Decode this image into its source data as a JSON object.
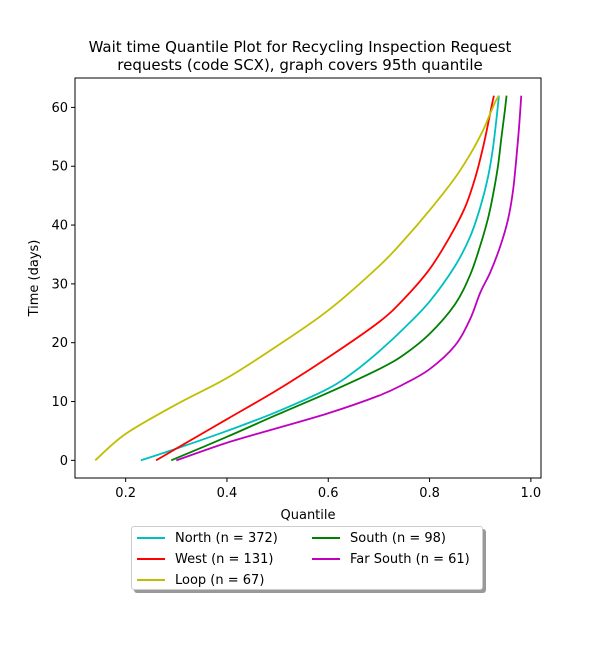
{
  "chart_data": {
    "type": "line",
    "title": "Wait time Quantile Plot for Recycling Inspection Request",
    "subtitle": "requests (code SCX), graph covers 95th quantile",
    "xlabel": "Quantile",
    "ylabel": "Time (days)",
    "xlim": [
      0.1,
      1.02
    ],
    "ylim": [
      -3,
      65
    ],
    "xticks": [
      "0.2",
      "0.4",
      "0.6",
      "0.8",
      "1.0"
    ],
    "yticks": [
      "0",
      "10",
      "20",
      "30",
      "40",
      "50",
      "60"
    ],
    "grid": false,
    "legend_position": "below plot",
    "series": [
      {
        "name": "North (n = 372)",
        "color": "#00bfbf",
        "x": [
          0.23,
          0.3,
          0.4,
          0.5,
          0.6,
          0.65,
          0.7,
          0.75,
          0.8,
          0.85,
          0.88,
          0.9,
          0.915,
          0.925,
          0.932,
          0.937
        ],
        "y": [
          0,
          2,
          5,
          8.3,
          12.2,
          15,
          18.5,
          22.5,
          27,
          33,
          38,
          43,
          48,
          53,
          58,
          62
        ]
      },
      {
        "name": "West (n = 131)",
        "color": "#ff0000",
        "x": [
          0.26,
          0.3,
          0.4,
          0.5,
          0.6,
          0.7,
          0.75,
          0.8,
          0.84,
          0.87,
          0.89,
          0.905,
          0.915,
          0.922,
          0.927
        ],
        "y": [
          0,
          2,
          7,
          12,
          17.5,
          23.5,
          27.5,
          32.5,
          38,
          43,
          48,
          53,
          57,
          60,
          62
        ]
      },
      {
        "name": "Loop (n = 67)",
        "color": "#bfbf00",
        "x": [
          0.14,
          0.2,
          0.3,
          0.4,
          0.5,
          0.6,
          0.7,
          0.75,
          0.8,
          0.85,
          0.88,
          0.905,
          0.92,
          0.93,
          0.937
        ],
        "y": [
          0,
          4.5,
          9.5,
          14,
          19.5,
          25.5,
          33,
          37.5,
          42.5,
          48,
          52,
          56,
          59,
          61,
          62
        ]
      },
      {
        "name": "South (n = 98)",
        "color": "#008000",
        "x": [
          0.29,
          0.4,
          0.5,
          0.6,
          0.7,
          0.75,
          0.8,
          0.85,
          0.88,
          0.9,
          0.915,
          0.925,
          0.935,
          0.942,
          0.948,
          0.952
        ],
        "y": [
          0,
          4,
          7.8,
          11.5,
          15.5,
          18,
          21.5,
          26.5,
          31.5,
          36.5,
          41,
          45,
          50,
          55,
          59,
          62
        ]
      },
      {
        "name": "Far South (n = 61)",
        "color": "#bf00bf",
        "x": [
          0.3,
          0.4,
          0.5,
          0.6,
          0.7,
          0.75,
          0.8,
          0.85,
          0.88,
          0.9,
          0.92,
          0.94,
          0.955,
          0.965,
          0.972,
          0.977,
          0.981
        ],
        "y": [
          0,
          3,
          5.5,
          8,
          11,
          13,
          15.5,
          19.5,
          24,
          28.5,
          32,
          36.5,
          41,
          46,
          52,
          57,
          62
        ]
      }
    ]
  }
}
